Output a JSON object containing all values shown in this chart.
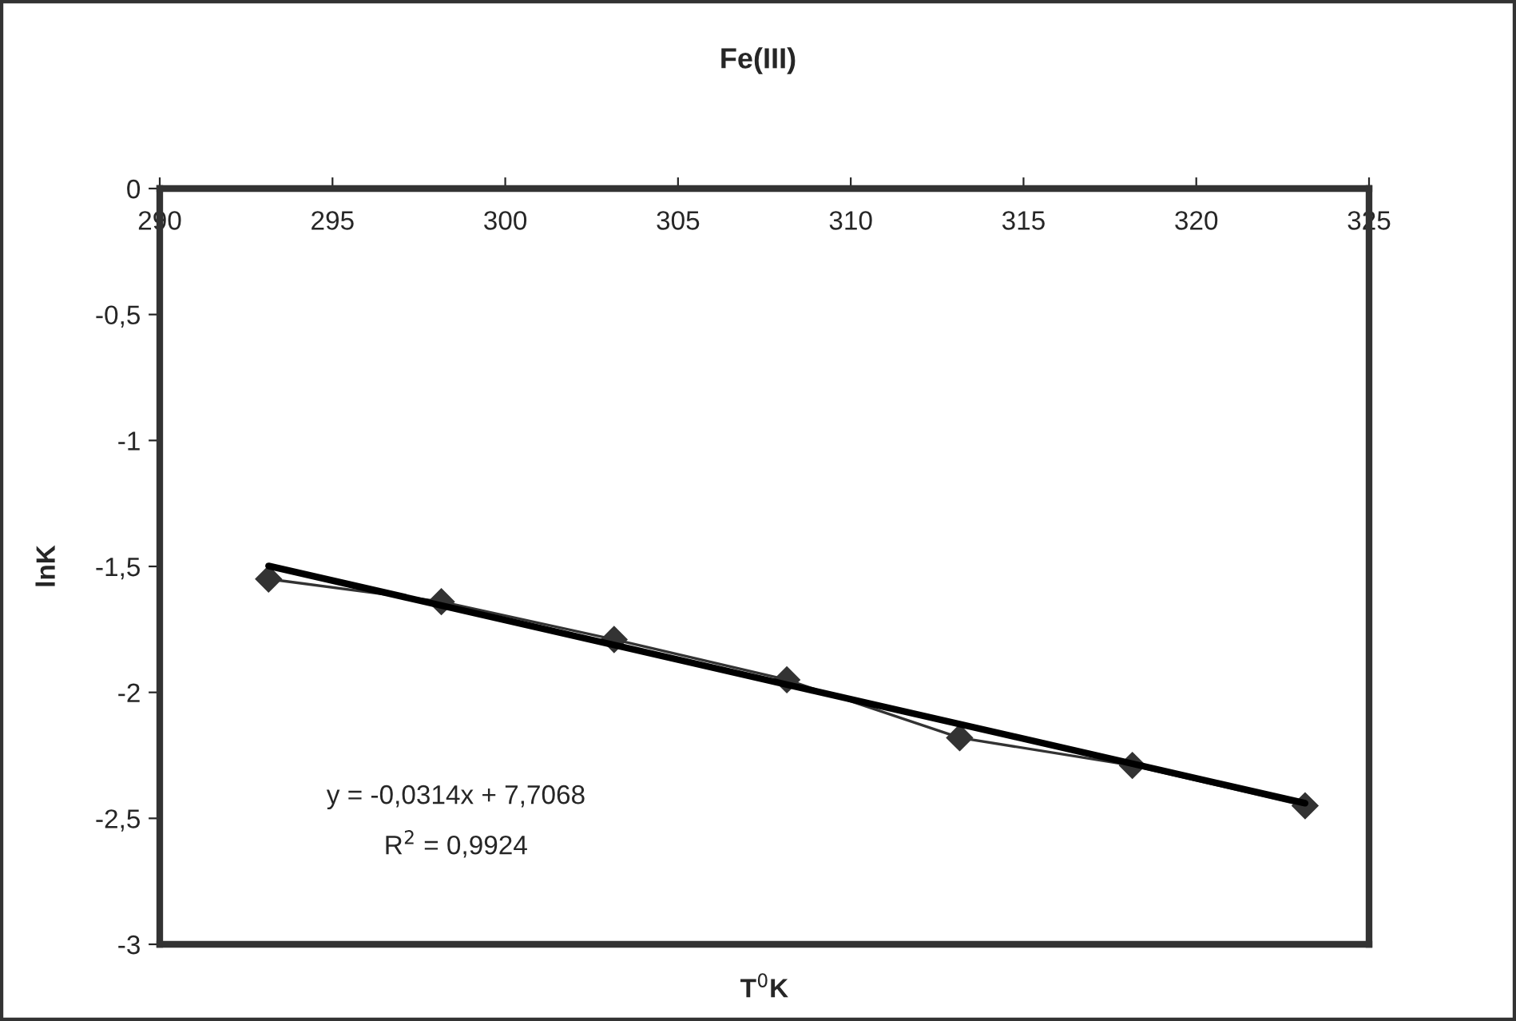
{
  "chart_data": {
    "type": "line",
    "title": "Fe(III)",
    "xlabel": "T$^{0}$K",
    "ylabel": "lnK",
    "xlim": [
      290,
      325
    ],
    "xticks": [
      290,
      295,
      300,
      305,
      310,
      315,
      320,
      325
    ],
    "ylim": [
      -3,
      0
    ],
    "yticks": [
      {
        "value": -3,
        "label": "-3"
      },
      {
        "value": -2.5,
        "label": "-2,5"
      },
      {
        "value": -2,
        "label": "-2"
      },
      {
        "value": -1.5,
        "label": "-1,5"
      },
      {
        "value": -1,
        "label": "-1"
      },
      {
        "value": -0.5,
        "label": "-0,5"
      },
      {
        "value": 0,
        "label": "0"
      }
    ],
    "grid": false,
    "legend": false,
    "series": [
      {
        "color": "#333333",
        "marker": "diamond",
        "x": [
          293.15,
          298.15,
          303.15,
          308.15,
          313.15,
          318.15,
          323.15
        ],
        "values": [
          -1.55,
          -1.64,
          -1.79,
          -1.95,
          -2.18,
          -2.29,
          -2.45
        ]
      },
      {
        "color": "#000000",
        "marker": "none",
        "x": [
          293.15,
          323.15
        ],
        "values": [
          -1.498,
          -2.44
        ]
      }
    ],
    "annotations": [
      "y = -0,0314x + 7,7068",
      "R$^{2}$ = 0,9924"
    ]
  }
}
